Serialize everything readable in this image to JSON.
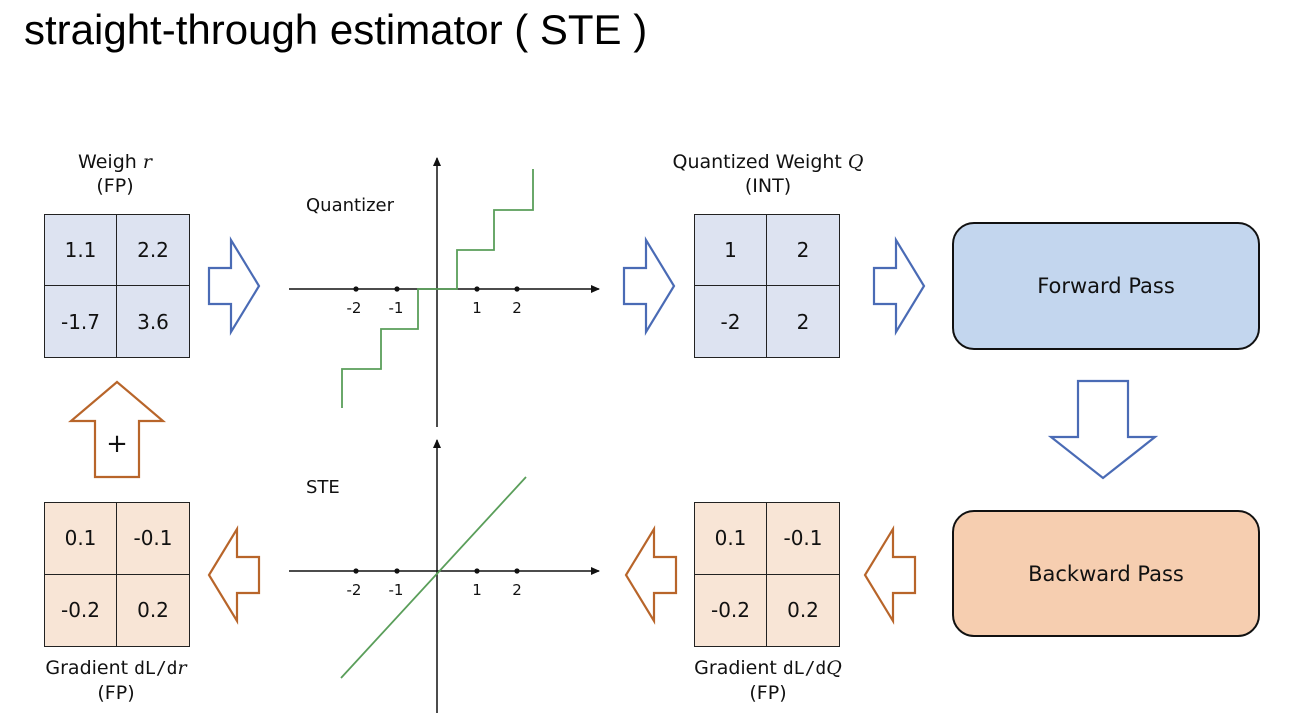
{
  "title": "straight-through estimator ( STE )",
  "weight_fp": {
    "label_line1_text": "Weigh ",
    "label_line1_symbol": "r",
    "label_line2": "(FP)",
    "cells": [
      "1.1",
      "2.2",
      "-1.7",
      "3.6"
    ]
  },
  "quantized_weight": {
    "label_line1_text": "Quantized Weight ",
    "label_line1_symbol": "Q",
    "label_line2": "(INT)",
    "cells": [
      "1",
      "2",
      "-2",
      "2"
    ]
  },
  "gradient_q": {
    "label_line1_text": "Gradient ",
    "label_line1_mono": "dL/d",
    "label_line1_symbol": "Q",
    "label_line2": "(FP)",
    "cells": [
      "0.1",
      "-0.1",
      "-0.2",
      "0.2"
    ]
  },
  "gradient_r": {
    "label_line1_text": "Gradient ",
    "label_line1_mono": "dL/d",
    "label_line1_symbol": "r",
    "label_line2": "(FP)",
    "cells": [
      "0.1",
      "-0.1",
      "-0.2",
      "0.2"
    ]
  },
  "forward_pass": {
    "label": "Forward Pass"
  },
  "backward_pass": {
    "label": "Backward Pass"
  },
  "quantizer_plot": {
    "label": "Quantizer",
    "tick_labels": [
      "-2",
      "-1",
      "1",
      "2"
    ],
    "line_color": "#5a9e5a"
  },
  "ste_plot": {
    "label": "STE",
    "tick_labels": [
      "-2",
      "-1",
      "1",
      "2"
    ],
    "line_color": "#5a9e5a"
  },
  "plus_sign": "+",
  "colors": {
    "forward_arrow": "#4a6bb5",
    "backward_arrow": "#b8652a",
    "forward_box": "#c3d6ee",
    "backward_box": "#f6ceb0",
    "matrix_blue": "#dde3f1",
    "matrix_orange": "#f8e5d6"
  }
}
